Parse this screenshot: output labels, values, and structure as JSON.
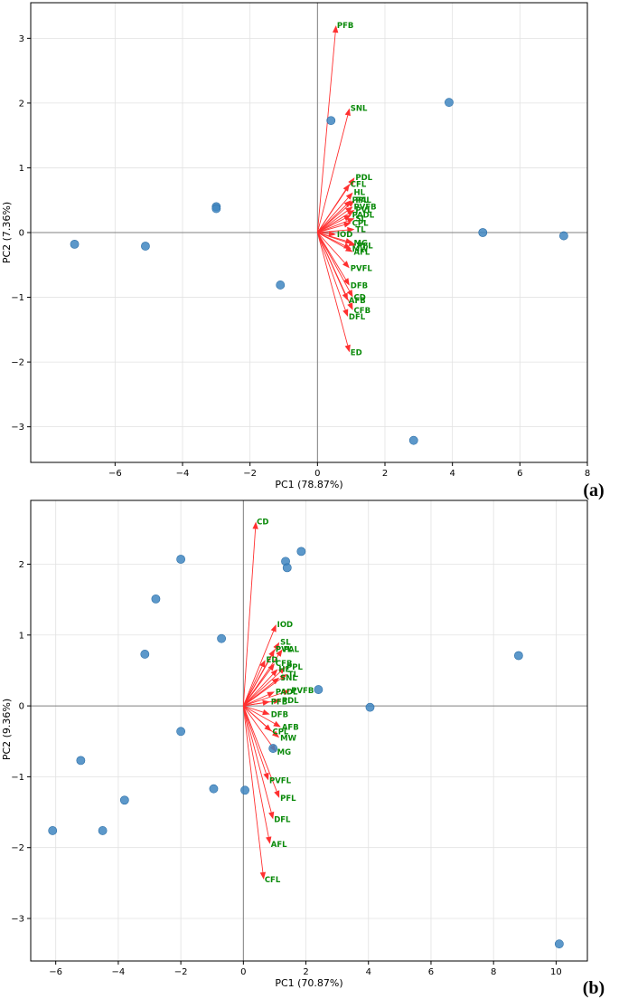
{
  "chart_data": [
    {
      "type": "scatter",
      "subtype": "pca-biplot",
      "panel_label": "(a)",
      "xlabel": "PC1 (78.87%)",
      "ylabel": "PC2 (7.36%)",
      "xlim": [
        -8.5,
        8
      ],
      "ylim": [
        -3.55,
        3.55
      ],
      "xticks": [
        -6,
        -4,
        -2,
        0,
        2,
        4,
        6,
        8
      ],
      "yticks": [
        -3,
        -2,
        -1,
        0,
        1,
        2,
        3
      ],
      "grid": true,
      "points": [
        {
          "x": -7.2,
          "y": -0.18
        },
        {
          "x": -5.1,
          "y": -0.21
        },
        {
          "x": -3.0,
          "y": 0.4
        },
        {
          "x": -3.0,
          "y": 0.37
        },
        {
          "x": -1.1,
          "y": -0.81
        },
        {
          "x": 0.4,
          "y": 1.73
        },
        {
          "x": 3.9,
          "y": 2.01
        },
        {
          "x": 4.9,
          "y": 0.0
        },
        {
          "x": 7.3,
          "y": -0.05
        },
        {
          "x": 2.85,
          "y": -3.21
        }
      ],
      "vectors": [
        {
          "label": "PFB",
          "x": 0.55,
          "y": 3.2
        },
        {
          "label": "SNL",
          "x": 0.95,
          "y": 1.92
        },
        {
          "label": "PDL",
          "x": 1.1,
          "y": 0.85
        },
        {
          "label": "CFL",
          "x": 0.95,
          "y": 0.75
        },
        {
          "label": "HL",
          "x": 1.05,
          "y": 0.62
        },
        {
          "label": "PPL",
          "x": 1.0,
          "y": 0.5
        },
        {
          "label": "PAL",
          "x": 1.1,
          "y": 0.5
        },
        {
          "label": "PVFB",
          "x": 1.05,
          "y": 0.4
        },
        {
          "label": "PVL",
          "x": 1.1,
          "y": 0.35
        },
        {
          "label": "PADL",
          "x": 1.0,
          "y": 0.27
        },
        {
          "label": "SL",
          "x": 1.1,
          "y": 0.22
        },
        {
          "label": "CPL",
          "x": 1.0,
          "y": 0.15
        },
        {
          "label": "TL",
          "x": 1.1,
          "y": 0.05
        },
        {
          "label": "IOD",
          "x": 0.55,
          "y": -0.03
        },
        {
          "label": "MG",
          "x": 1.05,
          "y": -0.16
        },
        {
          "label": "PFL",
          "x": 1.15,
          "y": -0.2
        },
        {
          "label": "MW",
          "x": 1.0,
          "y": -0.25
        },
        {
          "label": "AFL",
          "x": 1.05,
          "y": -0.3
        },
        {
          "label": "PVFL",
          "x": 0.95,
          "y": -0.55
        },
        {
          "label": "DFB",
          "x": 0.95,
          "y": -0.82
        },
        {
          "label": "CD",
          "x": 1.05,
          "y": -1.0
        },
        {
          "label": "AFB",
          "x": 0.9,
          "y": -1.05
        },
        {
          "label": "CFB",
          "x": 1.05,
          "y": -1.2
        },
        {
          "label": "DFL",
          "x": 0.9,
          "y": -1.3
        },
        {
          "label": "ED",
          "x": 0.95,
          "y": -1.85
        }
      ]
    },
    {
      "type": "scatter",
      "subtype": "pca-biplot",
      "panel_label": "(b)",
      "xlabel": "PC1 (70.87%)",
      "ylabel": "PC2 (9.36%)",
      "xlim": [
        -6.8,
        11
      ],
      "ylim": [
        -3.6,
        2.9
      ],
      "xticks": [
        -6,
        -4,
        -2,
        0,
        2,
        4,
        6,
        8,
        10
      ],
      "yticks": [
        -3,
        -2,
        -1,
        0,
        1,
        2
      ],
      "grid": true,
      "points": [
        {
          "x": -2.0,
          "y": 2.07
        },
        {
          "x": 1.85,
          "y": 2.18
        },
        {
          "x": 1.35,
          "y": 2.04
        },
        {
          "x": 1.4,
          "y": 1.95
        },
        {
          "x": -2.8,
          "y": 1.51
        },
        {
          "x": -0.7,
          "y": 0.95
        },
        {
          "x": -3.15,
          "y": 0.73
        },
        {
          "x": 8.8,
          "y": 0.71
        },
        {
          "x": 2.4,
          "y": 0.23
        },
        {
          "x": 4.05,
          "y": -0.02
        },
        {
          "x": -2.0,
          "y": -0.36
        },
        {
          "x": 0.95,
          "y": -0.6
        },
        {
          "x": -5.2,
          "y": -0.77
        },
        {
          "x": -0.95,
          "y": -1.17
        },
        {
          "x": 0.05,
          "y": -1.19
        },
        {
          "x": -3.8,
          "y": -1.33
        },
        {
          "x": -6.1,
          "y": -1.76
        },
        {
          "x": -4.5,
          "y": -1.76
        },
        {
          "x": 10.1,
          "y": -3.36
        }
      ],
      "vectors": [
        {
          "label": "CD",
          "x": 0.4,
          "y": 2.6
        },
        {
          "label": "IOD",
          "x": 1.05,
          "y": 1.15
        },
        {
          "label": "SL",
          "x": 1.15,
          "y": 0.9
        },
        {
          "label": "PAL",
          "x": 1.25,
          "y": 0.8
        },
        {
          "label": "PVL",
          "x": 1.0,
          "y": 0.8
        },
        {
          "label": "ED",
          "x": 0.7,
          "y": 0.65
        },
        {
          "label": "CFB",
          "x": 1.0,
          "y": 0.6
        },
        {
          "label": "HL",
          "x": 1.1,
          "y": 0.52
        },
        {
          "label": "PPL",
          "x": 1.35,
          "y": 0.55
        },
        {
          "label": "SNL",
          "x": 1.15,
          "y": 0.4
        },
        {
          "label": "TL",
          "x": 1.4,
          "y": 0.45
        },
        {
          "label": "PADL",
          "x": 1.0,
          "y": 0.2
        },
        {
          "label": "PVFB",
          "x": 1.5,
          "y": 0.22
        },
        {
          "label": "PFB",
          "x": 0.85,
          "y": 0.06
        },
        {
          "label": "PDL",
          "x": 1.2,
          "y": 0.08
        },
        {
          "label": "DFB",
          "x": 0.85,
          "y": -0.12
        },
        {
          "label": "AFB",
          "x": 1.2,
          "y": -0.3
        },
        {
          "label": "CPL",
          "x": 0.9,
          "y": -0.36
        },
        {
          "label": "MW",
          "x": 1.15,
          "y": -0.45
        },
        {
          "label": "MG",
          "x": 1.05,
          "y": -0.65
        },
        {
          "label": "PVFL",
          "x": 0.8,
          "y": -1.05
        },
        {
          "label": "PFL",
          "x": 1.15,
          "y": -1.3
        },
        {
          "label": "DFL",
          "x": 0.95,
          "y": -1.6
        },
        {
          "label": "AFL",
          "x": 0.85,
          "y": -1.95
        },
        {
          "label": "CFL",
          "x": 0.65,
          "y": -2.45
        }
      ]
    }
  ]
}
